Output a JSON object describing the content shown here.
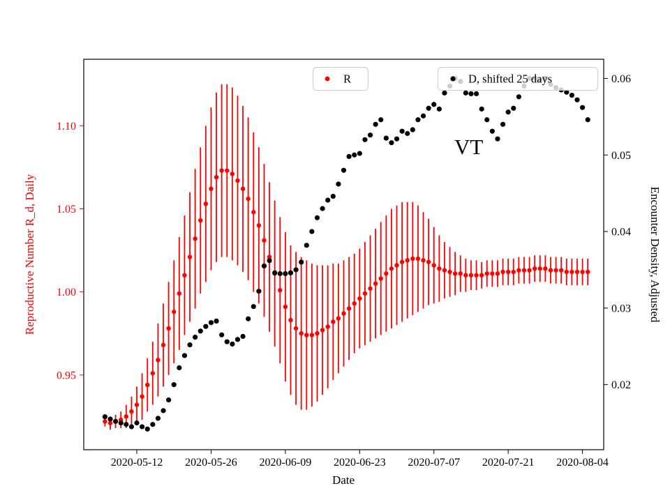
{
  "figure": {
    "background": "#ffffff"
  },
  "chart_data": {
    "type": "scatter",
    "title": "",
    "xlabel": "Date",
    "grid": false,
    "annotation": {
      "text": "VT"
    },
    "xlim": [
      "2020-05-02",
      "2020-08-08"
    ],
    "x_tick_labels": [
      "2020-05-12",
      "2020-05-26",
      "2020-06-09",
      "2020-06-23",
      "2020-07-07",
      "2020-07-21",
      "2020-08-04"
    ],
    "left_axis": {
      "label": "Reproductive Number R_d, Daily",
      "color": "#ff0000",
      "ticks": [
        0.95,
        1.0,
        1.05,
        1.1
      ],
      "ylim": [
        0.905,
        1.14
      ]
    },
    "right_axis": {
      "label": "Encounter Density, Adjusted",
      "color": "#000000",
      "ticks": [
        0.02,
        0.03,
        0.04,
        0.05,
        0.06
      ],
      "ylim": [
        0.0115,
        0.0625
      ]
    },
    "legend": [
      {
        "label": "R",
        "color": "#ff0000"
      },
      {
        "label": "D, shifted 25 days",
        "color": "#000000"
      }
    ],
    "dates": [
      "2020-05-06",
      "2020-05-07",
      "2020-05-08",
      "2020-05-09",
      "2020-05-10",
      "2020-05-11",
      "2020-05-12",
      "2020-05-13",
      "2020-05-14",
      "2020-05-15",
      "2020-05-16",
      "2020-05-17",
      "2020-05-18",
      "2020-05-19",
      "2020-05-20",
      "2020-05-21",
      "2020-05-22",
      "2020-05-23",
      "2020-05-24",
      "2020-05-25",
      "2020-05-26",
      "2020-05-27",
      "2020-05-28",
      "2020-05-29",
      "2020-05-30",
      "2020-05-31",
      "2020-06-01",
      "2020-06-02",
      "2020-06-03",
      "2020-06-04",
      "2020-06-05",
      "2020-06-06",
      "2020-06-07",
      "2020-06-08",
      "2020-06-09",
      "2020-06-10",
      "2020-06-11",
      "2020-06-12",
      "2020-06-13",
      "2020-06-14",
      "2020-06-15",
      "2020-06-16",
      "2020-06-17",
      "2020-06-18",
      "2020-06-19",
      "2020-06-20",
      "2020-06-21",
      "2020-06-22",
      "2020-06-23",
      "2020-06-24",
      "2020-06-25",
      "2020-06-26",
      "2020-06-27",
      "2020-06-28",
      "2020-06-29",
      "2020-06-30",
      "2020-07-01",
      "2020-07-02",
      "2020-07-03",
      "2020-07-04",
      "2020-07-05",
      "2020-07-06",
      "2020-07-07",
      "2020-07-08",
      "2020-07-09",
      "2020-07-10",
      "2020-07-11",
      "2020-07-12",
      "2020-07-13",
      "2020-07-14",
      "2020-07-15",
      "2020-07-16",
      "2020-07-17",
      "2020-07-18",
      "2020-07-19",
      "2020-07-20",
      "2020-07-21",
      "2020-07-22",
      "2020-07-23",
      "2020-07-24",
      "2020-07-25",
      "2020-07-26",
      "2020-07-27",
      "2020-07-28",
      "2020-07-29",
      "2020-07-30",
      "2020-07-31",
      "2020-08-01",
      "2020-08-02",
      "2020-08-03",
      "2020-08-04",
      "2020-08-05"
    ],
    "series": [
      {
        "name": "R",
        "axis": "left",
        "color": "#ff0000",
        "marker": "circle",
        "values": [
          0.922,
          0.921,
          0.922,
          0.923,
          0.925,
          0.928,
          0.932,
          0.937,
          0.944,
          0.951,
          0.959,
          0.968,
          0.978,
          0.988,
          0.999,
          1.01,
          1.021,
          1.032,
          1.043,
          1.053,
          1.062,
          1.069,
          1.073,
          1.073,
          1.071,
          1.067,
          1.062,
          1.056,
          1.048,
          1.04,
          1.031,
          1.021,
          1.011,
          1.001,
          0.991,
          0.983,
          0.978,
          0.975,
          0.974,
          0.974,
          0.975,
          0.977,
          0.979,
          0.982,
          0.984,
          0.987,
          0.99,
          0.993,
          0.996,
          0.999,
          1.002,
          1.005,
          1.008,
          1.011,
          1.014,
          1.016,
          1.018,
          1.019,
          1.02,
          1.02,
          1.019,
          1.018,
          1.016,
          1.014,
          1.013,
          1.012,
          1.011,
          1.011,
          1.01,
          1.01,
          1.01,
          1.01,
          1.011,
          1.011,
          1.011,
          1.012,
          1.012,
          1.012,
          1.013,
          1.013,
          1.013,
          1.014,
          1.014,
          1.014,
          1.013,
          1.013,
          1.013,
          1.012,
          1.012,
          1.012,
          1.012,
          1.012
        ],
        "errors": [
          0.003,
          0.004,
          0.004,
          0.005,
          0.007,
          0.009,
          0.011,
          0.014,
          0.016,
          0.019,
          0.022,
          0.025,
          0.028,
          0.031,
          0.034,
          0.036,
          0.039,
          0.042,
          0.044,
          0.047,
          0.049,
          0.051,
          0.052,
          0.052,
          0.052,
          0.051,
          0.05,
          0.049,
          0.048,
          0.047,
          0.046,
          0.045,
          0.044,
          0.044,
          0.045,
          0.045,
          0.046,
          0.046,
          0.045,
          0.043,
          0.041,
          0.039,
          0.037,
          0.035,
          0.033,
          0.032,
          0.031,
          0.03,
          0.03,
          0.031,
          0.032,
          0.033,
          0.034,
          0.035,
          0.036,
          0.036,
          0.036,
          0.035,
          0.034,
          0.032,
          0.029,
          0.026,
          0.023,
          0.02,
          0.017,
          0.015,
          0.013,
          0.011,
          0.01,
          0.009,
          0.009,
          0.008,
          0.008,
          0.008,
          0.008,
          0.008,
          0.008,
          0.008,
          0.008,
          0.008,
          0.008,
          0.008,
          0.008,
          0.008,
          0.008,
          0.008,
          0.008,
          0.008,
          0.008,
          0.008,
          0.008,
          0.008
        ]
      },
      {
        "name": "D, shifted 25 days",
        "axis": "right",
        "color": "#000000",
        "marker": "circle",
        "values": [
          0.0158,
          0.0155,
          0.0152,
          0.015,
          0.0148,
          0.0145,
          0.015,
          0.0145,
          0.0142,
          0.0148,
          0.0156,
          0.0166,
          0.018,
          0.02,
          0.0222,
          0.0238,
          0.0252,
          0.0262,
          0.027,
          0.0276,
          0.0281,
          0.0283,
          0.0265,
          0.0256,
          0.0253,
          0.0259,
          0.0263,
          0.0286,
          0.0302,
          0.0322,
          0.0355,
          0.0362,
          0.0346,
          0.0345,
          0.0345,
          0.0346,
          0.035,
          0.036,
          0.0382,
          0.04,
          0.0418,
          0.043,
          0.0441,
          0.0446,
          0.0462,
          0.048,
          0.0498,
          0.05,
          0.0502,
          0.052,
          0.0526,
          0.054,
          0.0546,
          0.0522,
          0.0516,
          0.0521,
          0.0531,
          0.0528,
          0.0533,
          0.0546,
          0.0551,
          0.0561,
          0.0566,
          0.056,
          0.0581,
          0.059,
          0.06,
          0.0596,
          0.0581,
          0.058,
          0.058,
          0.056,
          0.0546,
          0.0531,
          0.0521,
          0.054,
          0.0556,
          0.0561,
          0.0576,
          0.059,
          0.06,
          0.06,
          0.0598,
          0.06,
          0.0592,
          0.0588,
          0.0585,
          0.0582,
          0.0578,
          0.0572,
          0.0562,
          0.0546
        ]
      }
    ]
  }
}
